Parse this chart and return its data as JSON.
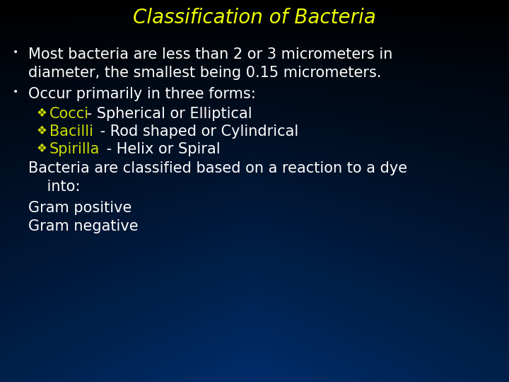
{
  "title": "Classification of Bacteria",
  "title_color": "#EEFF00",
  "title_fontsize": 20,
  "text_color_white": "#FFFFFF",
  "text_color_yellow": "#CCDD00",
  "bullet1_line1": "Most bacteria are less than 2 or 3 micrometers in",
  "bullet1_line2": "diameter, the smallest being 0.15 micrometers.",
  "bullet2": "Occur primarily in three forms:",
  "sub1_yellow": "Cocci",
  "sub1_white": " - Spherical or Elliptical",
  "sub2_yellow": "Bacilli",
  "sub2_white": " - Rod shaped or Cylindrical",
  "sub3_yellow": "Spirilla",
  "sub3_white": " - Helix or Spiral",
  "para1_line1": "Bacteria are classified based on a reaction to a dye",
  "para1_line2": "    into:",
  "para2": "Gram positive",
  "para3": "Gram negative",
  "fontsize_body": 15
}
